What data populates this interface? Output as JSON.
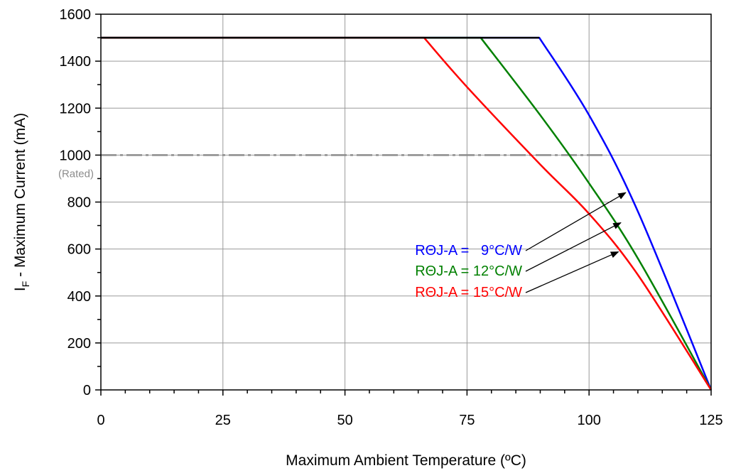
{
  "chart_data": {
    "type": "line",
    "xlabel": "Maximum Ambient Temperature (ºC)",
    "ylabel_main": "I",
    "ylabel_sub": "F",
    "ylabel_rest": " - Maximum Current (mA)",
    "xlim": [
      0,
      125
    ],
    "ylim": [
      0,
      1600
    ],
    "x_ticks": [
      "0",
      "25",
      "50",
      "75",
      "100",
      "125"
    ],
    "y_ticks": [
      "0",
      "200",
      "400",
      "600",
      "800",
      "1000",
      "1200",
      "1400",
      "1600"
    ],
    "grid": true,
    "rated_line": {
      "y": 1000,
      "label": "(Rated)",
      "x_end": 103.5,
      "color": "#8c8c8c"
    },
    "series": [
      {
        "name": "RΘJ-A =   9°C/W",
        "color": "#0000ff",
        "points": [
          [
            0,
            1500
          ],
          [
            89.8,
            1500
          ],
          [
            100,
            1170
          ],
          [
            110,
            760
          ],
          [
            125,
            0
          ]
        ]
      },
      {
        "name": "RΘJ-A = 12°C/W",
        "color": "#008000",
        "points": [
          [
            0,
            1500
          ],
          [
            77.8,
            1500
          ],
          [
            90,
            1170
          ],
          [
            100,
            880
          ],
          [
            110,
            560
          ],
          [
            125,
            0
          ]
        ]
      },
      {
        "name": "RΘJ-A = 15°C/W",
        "color": "#ff0000",
        "points": [
          [
            0,
            1500
          ],
          [
            66.2,
            1500
          ],
          [
            75,
            1290
          ],
          [
            90,
            960
          ],
          [
            100,
            750
          ],
          [
            110,
            490
          ],
          [
            125,
            0
          ]
        ]
      }
    ],
    "annotations": [
      {
        "series": 0,
        "target": [
          107.5,
          840
        ]
      },
      {
        "series": 1,
        "target": [
          106.5,
          712
        ]
      },
      {
        "series": 2,
        "target": [
          106,
          588
        ]
      }
    ]
  }
}
